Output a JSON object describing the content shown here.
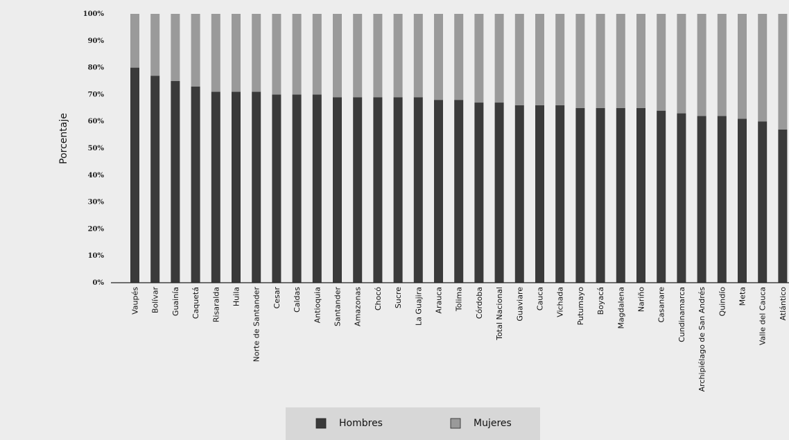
{
  "chart_data": {
    "type": "bar",
    "stacked": true,
    "ylabel": "Porcentaje",
    "xlabel": "",
    "title": "",
    "ylim": [
      0,
      100
    ],
    "yticks": [
      "0%",
      "10%",
      "20%",
      "30%",
      "40%",
      "50%",
      "60%",
      "70%",
      "80%",
      "90%",
      "100%"
    ],
    "categories": [
      "Vaupés",
      "Bolívar",
      "Guainía",
      "Caquetá",
      "Risaralda",
      "Huila",
      "Norte de Santander",
      "Cesar",
      "Caldas",
      "Antioquia",
      "Santander",
      "Amazonas",
      "Chocó",
      "Sucre",
      "La Guajira",
      "Arauca",
      "Tolima",
      "Córdoba",
      "Total Nacional",
      "Guaviare",
      "Cauca",
      "Vichada",
      "Putumayo",
      "Boyacá",
      "Magdalena",
      "Nariño",
      "Casanare",
      "Cundinamarca",
      "Archipiélago de San Andrés",
      "Quindío",
      "Meta",
      "Valle del Cauca",
      "Atlántico"
    ],
    "series": [
      {
        "name": "Hombres",
        "color": "#3a3a3a",
        "values": [
          80,
          77,
          75,
          73,
          71,
          71,
          71,
          70,
          70,
          70,
          69,
          69,
          69,
          69,
          69,
          68,
          68,
          67,
          67,
          66,
          66,
          66,
          65,
          65,
          65,
          65,
          64,
          63,
          62,
          62,
          61,
          60,
          57
        ]
      },
      {
        "name": "Mujeres",
        "color": "#9a9a9a",
        "values": [
          20,
          23,
          25,
          27,
          29,
          29,
          29,
          30,
          30,
          30,
          31,
          31,
          31,
          31,
          31,
          32,
          32,
          33,
          33,
          34,
          34,
          34,
          35,
          35,
          35,
          35,
          36,
          37,
          38,
          38,
          39,
          40,
          43
        ]
      }
    ],
    "legend_position": "bottom"
  }
}
